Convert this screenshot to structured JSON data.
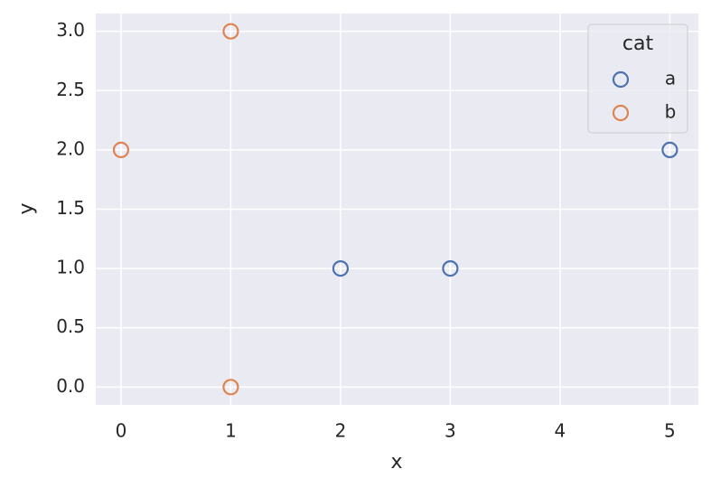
{
  "chart_data": {
    "type": "scatter",
    "xlabel": "x",
    "ylabel": "y",
    "series": [
      {
        "name": "a",
        "color": "#4c72b0",
        "x": [
          2,
          3,
          5
        ],
        "y": [
          1,
          1,
          2
        ]
      },
      {
        "name": "b",
        "color": "#dd8452",
        "x": [
          1,
          0,
          1
        ],
        "y": [
          3,
          2,
          0
        ]
      }
    ],
    "xlim": [
      -0.23,
      5.26
    ],
    "xticks": [
      0,
      1,
      2,
      3,
      4,
      5
    ],
    "ylim": [
      -0.15,
      3.15
    ],
    "yticks": [
      {
        "value": 0,
        "label": "0.0"
      },
      {
        "value": 0.5,
        "label": "0.5"
      },
      {
        "value": 1,
        "label": "1.0"
      },
      {
        "value": 1.5,
        "label": "1.5"
      },
      {
        "value": 2,
        "label": "2.0"
      },
      {
        "value": 2.5,
        "label": "2.5"
      },
      {
        "value": 3,
        "label": "3.0"
      }
    ],
    "grid": true,
    "legend_title": "cat",
    "legend_loc": "upper right"
  }
}
